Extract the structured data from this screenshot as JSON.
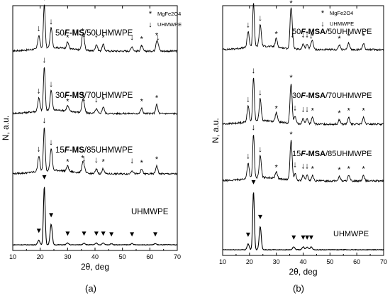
{
  "chart_data": [
    {
      "type": "line",
      "panel_label": "(a)",
      "xlabel": "2θ, deg",
      "ylabel": "N, a.u.",
      "xlim": [
        10,
        70
      ],
      "xticks": [
        "10",
        "20",
        "30",
        "40",
        "50",
        "60",
        "70"
      ],
      "yticks": false,
      "legend": {
        "placement": "top-right",
        "items": [
          {
            "symbol": "*",
            "label": "MgFe2O4"
          },
          {
            "symbol": "↓",
            "label": "UHMWPE"
          }
        ]
      },
      "series": [
        {
          "name": "50F-MS/50UHMWPE",
          "label_parts": {
            "pre": "50",
            "mid": "F-MS",
            "post": "/50UHMWPE"
          },
          "uhmwpe_peaks": [
            19.5,
            21.5,
            24,
            36,
            40.5,
            53.5,
            63
          ],
          "mgfe2o4_peaks": [
            30,
            35.5,
            43,
            57,
            62.5
          ],
          "peak_heights": [
            0.3,
            1.0,
            0.45,
            0.15,
            0.15,
            0.1,
            0.1,
            0.15,
            0.3,
            0.15,
            0.12,
            0.2
          ]
        },
        {
          "name": "30F-MS/70UHMWPE",
          "label_parts": {
            "pre": "30",
            "mid": "F-MS",
            "post": "/70UHMWPE"
          },
          "uhmwpe_peaks": [
            19.5,
            21.5,
            24,
            36,
            40.5
          ],
          "mgfe2o4_peaks": [
            30,
            35.5,
            43,
            57,
            62.5
          ],
          "peak_heights": [
            0.3,
            1.0,
            0.45,
            0.12,
            0.1,
            0.12,
            0.25,
            0.15,
            0.12,
            0.2
          ]
        },
        {
          "name": "15F-MS/85UHMWPE",
          "label_parts": {
            "pre": "15",
            "mid": "F-MS",
            "post": "/85UHMWPE"
          },
          "uhmwpe_peaks": [
            19.5,
            21.5,
            24,
            36,
            40.5,
            53.5
          ],
          "mgfe2o4_peaks": [
            30,
            35.5,
            43,
            57,
            62.5
          ],
          "peak_heights": [
            0.35,
            1.0,
            0.5,
            0.12,
            0.1,
            0.08,
            0.12,
            0.2,
            0.12,
            0.1,
            0.18
          ]
        },
        {
          "name": "UHMWPE",
          "label_parts": {
            "pre": "",
            "mid": "",
            "post": "UHMWPE"
          },
          "uhmwpe_peaks": [
            19.5,
            21.5,
            24,
            30,
            36,
            40.5,
            43,
            46,
            53.5,
            62
          ],
          "mgfe2o4_peaks": [],
          "peak_heights": [
            0.08,
            1.0,
            0.35,
            0.03,
            0.03,
            0.03,
            0.03,
            0.02,
            0.02,
            0.02
          ]
        }
      ]
    },
    {
      "type": "line",
      "panel_label": "(b)",
      "xlabel": "2θ, deg",
      "ylabel": "N, a.u.",
      "xlim": [
        10,
        70
      ],
      "xticks": [
        "10",
        "20",
        "30",
        "40",
        "50",
        "60",
        "70"
      ],
      "yticks": false,
      "legend": {
        "placement": "top-right",
        "items": [
          {
            "symbol": "*",
            "label": "MgFe2O4"
          },
          {
            "symbol": "↓",
            "label": "UHMWPE"
          }
        ]
      },
      "series": [
        {
          "name": "50F-MSA/50UHMWPE",
          "label_parts": {
            "pre": "50",
            "mid": "F-MSA",
            "post": "/50UHMWPE"
          },
          "uhmwpe_peaks": [
            19.5,
            21.5,
            24,
            36,
            40,
            41.5,
            43
          ],
          "mgfe2o4_peaks": [
            30,
            35.5,
            43.5,
            53.5,
            57,
            62.5
          ],
          "peak_heights": [
            0.35,
            1.0,
            0.5,
            0.12,
            0.12,
            0.12,
            0.1,
            0.2,
            0.9,
            0.15,
            0.1,
            0.15,
            0.15
          ]
        },
        {
          "name": "30F-MSA/70UHMWPE",
          "label_parts": {
            "pre": "30",
            "mid": "F-MSA",
            "post": "/70UHMWPE"
          },
          "uhmwpe_peaks": [
            19.5,
            21.5,
            24,
            37,
            40,
            41.5
          ],
          "mgfe2o4_peaks": [
            30,
            35.5,
            43.5,
            53.5,
            57,
            62.5
          ],
          "peak_heights": [
            0.35,
            1.0,
            0.5,
            0.15,
            0.12,
            0.12,
            0.2,
            0.9,
            0.15,
            0.1,
            0.15,
            0.15
          ]
        },
        {
          "name": "15F-MSA/85UHMWPE",
          "label_parts": {
            "pre": "15",
            "mid": "F-MSA",
            "post": "/85UHMWPE"
          },
          "uhmwpe_peaks": [
            19.5,
            21.5,
            24,
            37,
            40,
            41.5
          ],
          "mgfe2o4_peaks": [
            30,
            35.5,
            43.5,
            53.5,
            57,
            62.5
          ],
          "peak_heights": [
            0.35,
            1.0,
            0.5,
            0.15,
            0.12,
            0.12,
            0.15,
            0.9,
            0.12,
            0.1,
            0.12,
            0.12
          ]
        },
        {
          "name": "UHMWPE",
          "label_parts": {
            "pre": "",
            "mid": "",
            "post": "UHMWPE"
          },
          "uhmwpe_peaks": [
            19.5,
            21.5,
            24,
            36.5,
            40,
            41.5,
            43
          ],
          "mgfe2o4_peaks": [],
          "peak_heights": [
            0.1,
            1.0,
            0.4,
            0.05,
            0.05,
            0.05,
            0.05
          ]
        }
      ]
    }
  ]
}
